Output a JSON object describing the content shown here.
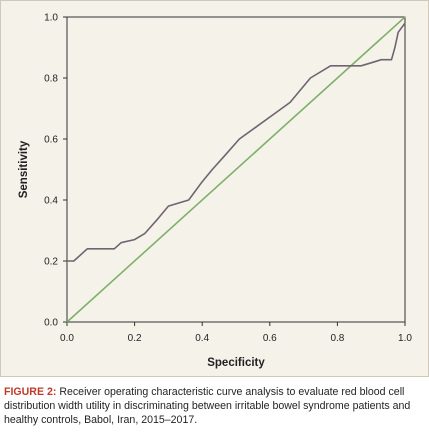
{
  "chart_data": {
    "type": "line",
    "xlabel": "Specificity",
    "ylabel": "Sensitivity",
    "xlim": [
      0.0,
      1.0
    ],
    "ylim": [
      0.0,
      1.0
    ],
    "x_ticks": [
      "0.0",
      "0.2",
      "0.4",
      "0.6",
      "0.8",
      "1.0"
    ],
    "y_ticks": [
      "0.0",
      "0.2",
      "0.4",
      "0.6",
      "0.8",
      "1.0"
    ],
    "grid": false,
    "series": [
      {
        "color": "#706470",
        "x": [
          0.0,
          0.02,
          0.06,
          0.1,
          0.14,
          0.16,
          0.2,
          0.23,
          0.27,
          0.3,
          0.36,
          0.4,
          0.43,
          0.47,
          0.51,
          0.56,
          0.61,
          0.66,
          0.69,
          0.72,
          0.78,
          0.83,
          0.87,
          0.9,
          0.93,
          0.96,
          0.97,
          0.98,
          1.0
        ],
        "y": [
          0.2,
          0.2,
          0.24,
          0.24,
          0.24,
          0.26,
          0.27,
          0.29,
          0.34,
          0.38,
          0.4,
          0.46,
          0.5,
          0.55,
          0.6,
          0.64,
          0.68,
          0.72,
          0.76,
          0.8,
          0.84,
          0.84,
          0.84,
          0.85,
          0.86,
          0.86,
          0.9,
          0.95,
          0.98
        ]
      },
      {
        "color": "#7fb069",
        "x": [
          0.0,
          1.0
        ],
        "y": [
          0.0,
          1.0
        ]
      }
    ]
  },
  "caption": {
    "label": "FIGURE 2:",
    "text": " Receiver operating characteristic curve analysis to evaluate red blood cell distribution width utility in discriminating between irritable bowel syndrome patients and healthy controls, Babol, Iran, 2015–2017."
  }
}
